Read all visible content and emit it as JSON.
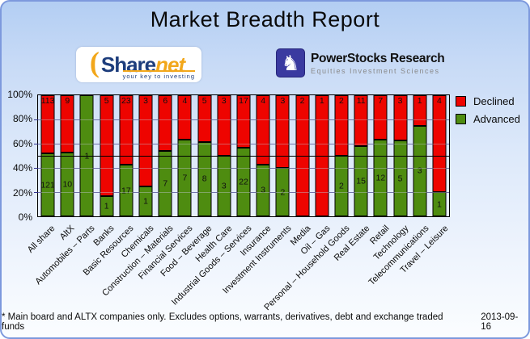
{
  "header": {
    "title": "Market Breadth Report"
  },
  "logos": {
    "sharenet": {
      "paren": "(",
      "name_part1": "Share",
      "name_part2": "net",
      "tagline": "your key to investing"
    },
    "powerstocks": {
      "icon": "knight-chess-icon",
      "title": "PowerStocks Research",
      "subtitle": "Equities Investment Sciences"
    }
  },
  "chart_data": {
    "type": "bar",
    "stacked": true,
    "orientation": "vertical",
    "value_mode": "percent-of-total",
    "categories": [
      "All share",
      "AltX",
      "Automobiles – Parts",
      "Banks",
      "Basic Resources",
      "Chemicals",
      "Construction – Materials",
      "Financial Services",
      "Food – Beverage",
      "Health Care",
      "Industrial Goods – Services",
      "Insurance",
      "Investment Instruments",
      "Media",
      "Oil – Gas",
      "Personal – Household Goods",
      "Real Estate",
      "Retail",
      "Technology",
      "Telecommunications",
      "Travel – Leisure"
    ],
    "series": [
      {
        "name": "Declined",
        "color": "#ee0400",
        "values": [
          113,
          9,
          0,
          5,
          23,
          3,
          6,
          4,
          5,
          3,
          17,
          4,
          3,
          2,
          1,
          2,
          11,
          7,
          3,
          1,
          4
        ]
      },
      {
        "name": "Advanced",
        "color": "#4e8c10",
        "values": [
          121,
          10,
          1,
          1,
          17,
          1,
          7,
          7,
          8,
          3,
          22,
          3,
          2,
          0,
          0,
          2,
          15,
          12,
          5,
          3,
          1
        ]
      }
    ],
    "bar_labels": "counts shown inside segments; hidden when count is 0",
    "y_axis": {
      "ticks": [
        "0%",
        "20%",
        "40%",
        "60%",
        "80%",
        "100%"
      ],
      "min": 0,
      "max": 100
    },
    "reference_line_percent": 50,
    "grid": true,
    "legend_position": "right"
  },
  "legend": {
    "items": [
      {
        "label": "Declined",
        "color": "#ee0400"
      },
      {
        "label": "Advanced",
        "color": "#4e8c10"
      }
    ]
  },
  "footer": {
    "note": "* Main board and ALTX companies only. Excludes options, warrants, derivatives, debt and exchange traded funds",
    "date": "2013-09-16"
  }
}
